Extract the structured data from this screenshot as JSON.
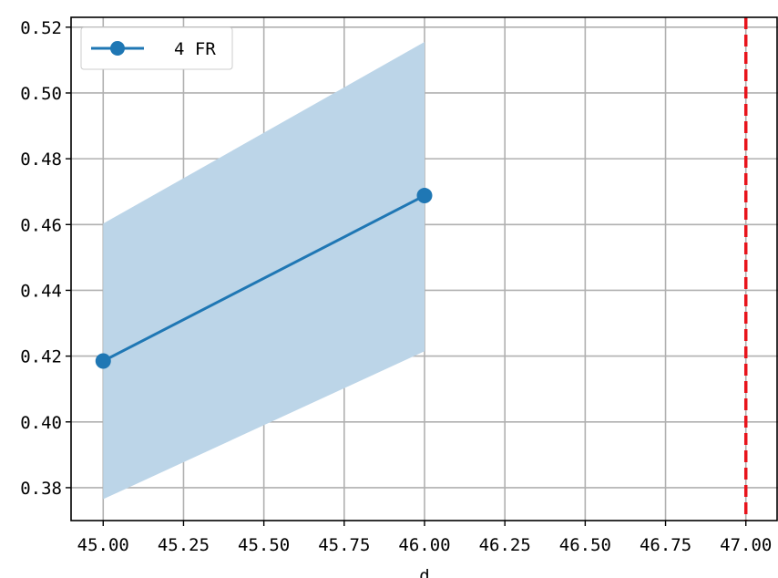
{
  "chart_data": {
    "type": "line",
    "title": "",
    "xlabel": "d",
    "ylabel": "",
    "xlim": [
      44.9,
      47.1
    ],
    "ylim": [
      0.37,
      0.523
    ],
    "x_ticks": [
      45.0,
      45.25,
      45.5,
      45.75,
      46.0,
      46.25,
      46.5,
      46.75,
      47.0
    ],
    "x_tick_labels": [
      "45.00",
      "45.25",
      "45.50",
      "45.75",
      "46.00",
      "46.25",
      "46.50",
      "46.75",
      "47.00"
    ],
    "y_ticks": [
      0.38,
      0.4,
      0.42,
      0.44,
      0.46,
      0.48,
      0.5,
      0.52
    ],
    "y_tick_labels": [
      "0.38",
      "0.40",
      "0.42",
      "0.44",
      "0.46",
      "0.48",
      "0.50",
      "0.52"
    ],
    "grid": true,
    "legend_position": "top-left",
    "series": [
      {
        "name": "4 FR",
        "color": "#1f77b4",
        "marker": "circle",
        "x": [
          45.0,
          46.0
        ],
        "y": [
          0.4185,
          0.4688
        ],
        "band_lower": [
          0.3765,
          0.4215
        ],
        "band_upper": [
          0.4603,
          0.5155
        ],
        "band_color": "#bcd5e8"
      }
    ],
    "reference_lines": [
      {
        "orientation": "vertical",
        "x": 47.0,
        "color": "#e8141c",
        "style": "dashed"
      }
    ]
  }
}
